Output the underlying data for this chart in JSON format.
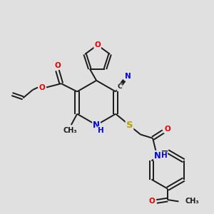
{
  "bg_color": "#e0e0e0",
  "bond_color": "#1a1a1a",
  "bond_width": 1.4,
  "atom_colors": {
    "O": "#e00000",
    "N": "#0000dd",
    "S": "#b8a000",
    "C": "#1a1a1a"
  },
  "font_size": 7.5,
  "xlim": [
    0,
    10
  ],
  "ylim": [
    0,
    10
  ],
  "figsize": [
    3.0,
    3.0
  ],
  "dpi": 100
}
